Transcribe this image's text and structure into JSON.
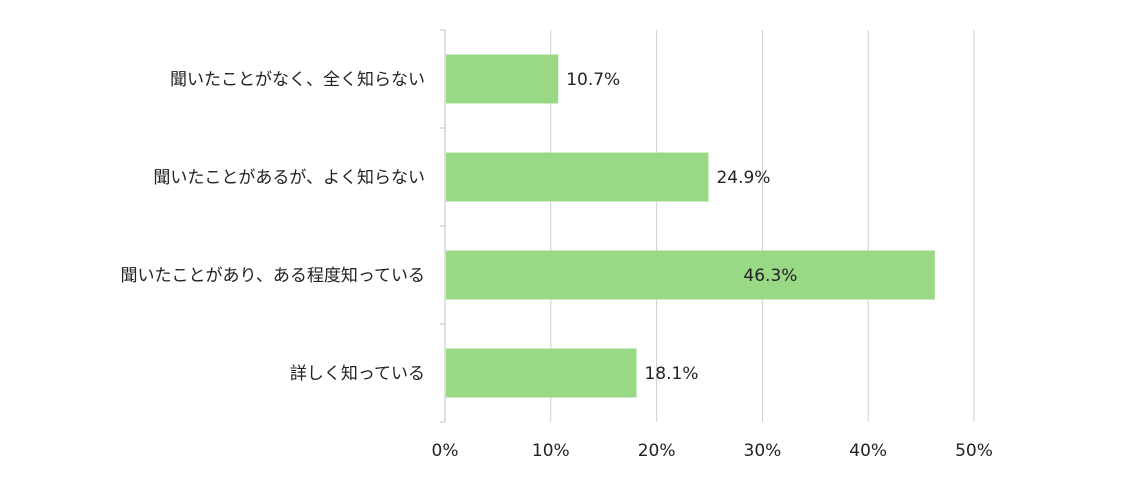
{
  "chart_data": {
    "type": "bar",
    "orientation": "horizontal",
    "categories": [
      "聞いたことがなく、全く知らない",
      "聞いたことがあるが、よく知らない",
      "聞いたことがあり、ある程度知っている",
      "詳しく知っている"
    ],
    "values": [
      10.7,
      24.9,
      46.3,
      18.1
    ],
    "data_labels": [
      "10.7%",
      "24.9%",
      "46.3%",
      "18.1%"
    ],
    "xlim": [
      0,
      50
    ],
    "xticks": [
      0,
      10,
      20,
      30,
      40,
      50
    ],
    "xtick_labels": [
      "0%",
      "10%",
      "20%",
      "30%",
      "40%",
      "50%"
    ],
    "grid": "vertical",
    "legend": "none",
    "bar_color": "#99d884"
  }
}
